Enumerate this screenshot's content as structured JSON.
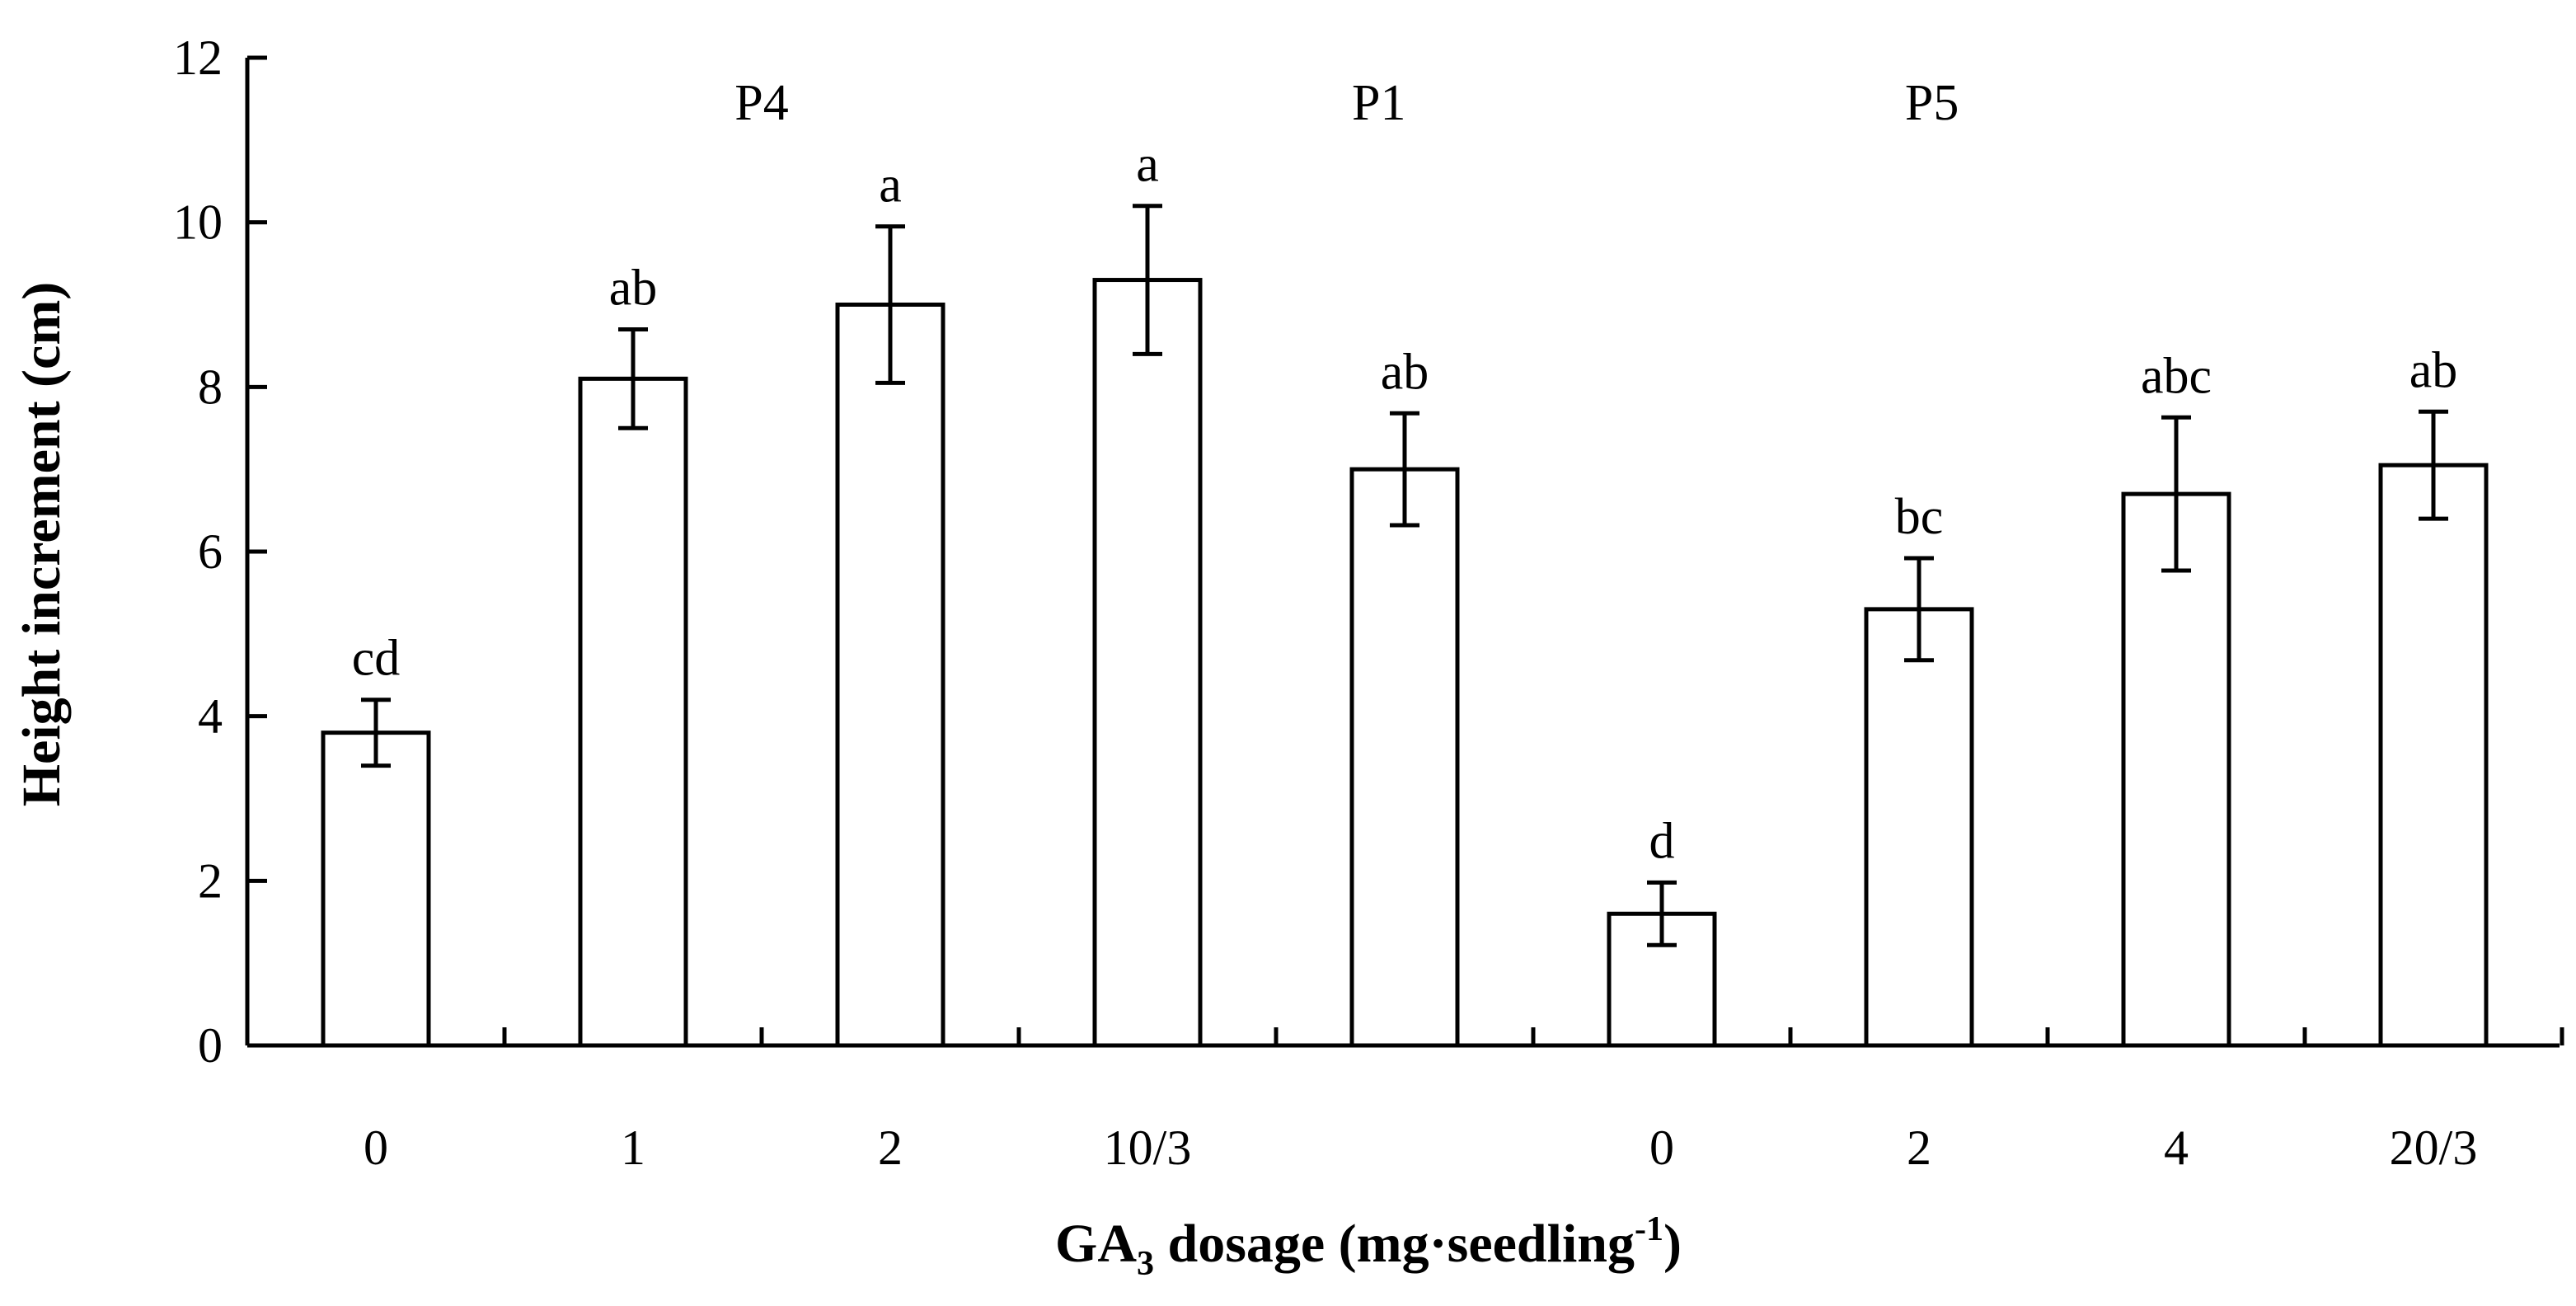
{
  "chart_data": {
    "type": "bar",
    "ylabel": "Height increment (cm)",
    "xlabel": {
      "main": "GA",
      "sub": "3",
      "rest": " dosage (mg·seedling",
      "sup": "-1",
      "close": ")"
    },
    "ylim": [
      0,
      12
    ],
    "yticks": [
      0,
      2,
      4,
      6,
      8,
      10,
      12
    ],
    "groups": [
      {
        "label": "P4",
        "center_slot": 2
      },
      {
        "label": "P1",
        "center_slot": 4.4
      },
      {
        "label": "P5",
        "center_slot": 6.55
      }
    ],
    "bars": [
      {
        "category": "0",
        "value": 3.8,
        "error": 0.4,
        "sig": "cd"
      },
      {
        "category": "1",
        "value": 8.1,
        "error": 0.6,
        "sig": "ab"
      },
      {
        "category": "2",
        "value": 9.0,
        "error": 0.95,
        "sig": "a"
      },
      {
        "category": "10/3",
        "value": 9.3,
        "error": 0.9,
        "sig": "a"
      },
      {
        "category": "",
        "value": 7.0,
        "error": 0.68,
        "sig": "ab"
      },
      {
        "category": "0",
        "value": 1.6,
        "error": 0.38,
        "sig": "d"
      },
      {
        "category": "2",
        "value": 5.3,
        "error": 0.62,
        "sig": "bc"
      },
      {
        "category": "4",
        "value": 6.7,
        "error": 0.93,
        "sig": "abc"
      },
      {
        "category": "20/3",
        "value": 7.05,
        "error": 0.65,
        "sig": "ab"
      }
    ]
  }
}
